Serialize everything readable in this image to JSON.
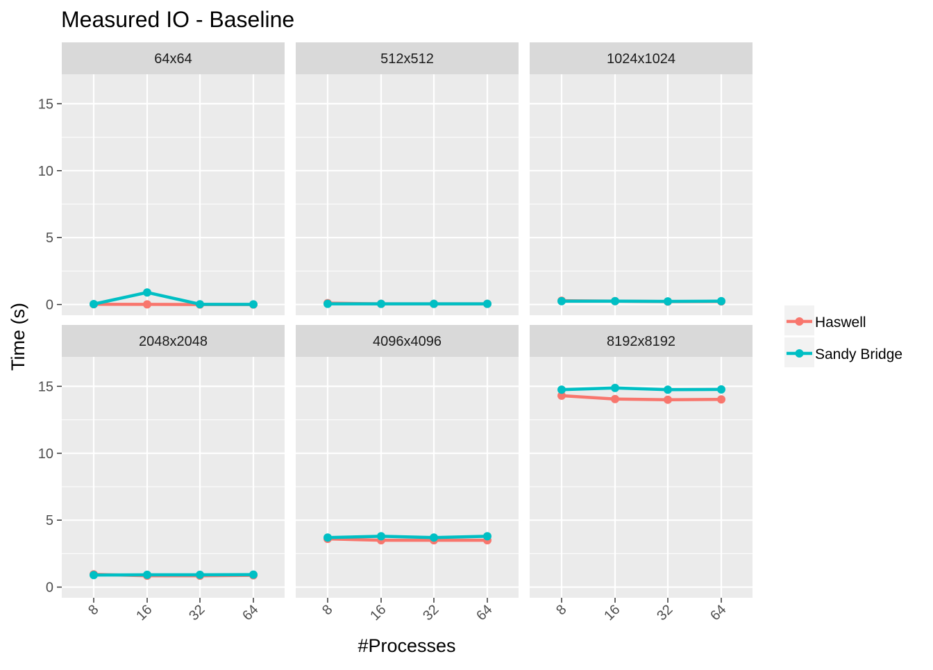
{
  "chart_data": {
    "type": "line",
    "title": "Measured IO - Baseline",
    "xlabel": "#Processes",
    "ylabel": "Time (s)",
    "x": [
      "8",
      "16",
      "32",
      "64"
    ],
    "ylim": [
      -0.8,
      17.2
    ],
    "yticks": [
      0,
      5,
      10,
      15
    ],
    "grid": true,
    "legend": "right",
    "colors": {
      "Haswell": "#F8766D",
      "Sandy Bridge": "#00BFC4"
    },
    "legend_entries": [
      "Haswell",
      "Sandy Bridge"
    ],
    "panels": [
      {
        "label": "64x64",
        "series": [
          {
            "name": "Haswell",
            "values": [
              0.02,
              0.01,
              0.0,
              0.0
            ]
          },
          {
            "name": "Sandy Bridge",
            "values": [
              0.03,
              0.9,
              0.02,
              0.01
            ]
          }
        ]
      },
      {
        "label": "512x512",
        "series": [
          {
            "name": "Haswell",
            "values": [
              0.1,
              0.05,
              0.05,
              0.05
            ]
          },
          {
            "name": "Sandy Bridge",
            "values": [
              0.05,
              0.05,
              0.05,
              0.05
            ]
          }
        ]
      },
      {
        "label": "1024x1024",
        "series": [
          {
            "name": "Haswell",
            "values": [
              0.28,
              0.25,
              0.22,
              0.23
            ]
          },
          {
            "name": "Sandy Bridge",
            "values": [
              0.25,
              0.25,
              0.23,
              0.25
            ]
          }
        ]
      },
      {
        "label": "2048x2048",
        "series": [
          {
            "name": "Haswell",
            "values": [
              0.95,
              0.85,
              0.85,
              0.88
            ]
          },
          {
            "name": "Sandy Bridge",
            "values": [
              0.9,
              0.92,
              0.92,
              0.93
            ]
          }
        ]
      },
      {
        "label": "4096x4096",
        "series": [
          {
            "name": "Haswell",
            "values": [
              3.6,
              3.5,
              3.5,
              3.5
            ]
          },
          {
            "name": "Sandy Bridge",
            "values": [
              3.7,
              3.8,
              3.7,
              3.8
            ]
          }
        ]
      },
      {
        "label": "8192x8192",
        "series": [
          {
            "name": "Haswell",
            "values": [
              14.3,
              14.05,
              14.0,
              14.02
            ]
          },
          {
            "name": "Sandy Bridge",
            "values": [
              14.75,
              14.88,
              14.75,
              14.77
            ]
          }
        ]
      }
    ]
  }
}
